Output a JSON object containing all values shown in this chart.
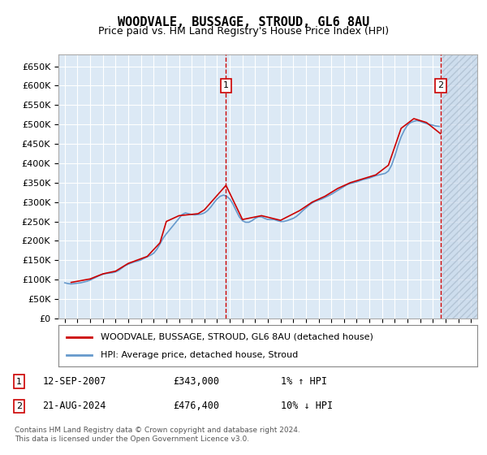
{
  "title": "WOODVALE, BUSSAGE, STROUD, GL6 8AU",
  "subtitle": "Price paid vs. HM Land Registry's House Price Index (HPI)",
  "ylabel_ticks": [
    "£0",
    "£50K",
    "£100K",
    "£150K",
    "£200K",
    "£250K",
    "£300K",
    "£350K",
    "£400K",
    "£450K",
    "£500K",
    "£550K",
    "£600K",
    "£650K"
  ],
  "yticks": [
    0,
    50000,
    100000,
    150000,
    200000,
    250000,
    300000,
    350000,
    400000,
    450000,
    500000,
    550000,
    600000,
    650000
  ],
  "xlim_start": 1994.5,
  "xlim_end": 2027.5,
  "ylim_min": 0,
  "ylim_max": 680000,
  "background_color": "#dce9f5",
  "hatch_color": "#b8cfe8",
  "plot_bg": "#dce9f5",
  "grid_color": "#ffffff",
  "red_line_color": "#cc0000",
  "blue_line_color": "#6699cc",
  "marker1_date": 2007.7,
  "marker2_date": 2024.6,
  "marker1_price": 343000,
  "marker2_price": 476400,
  "annotation1": "1    12-SEP-2007         £343,000         1% ↑ HPI",
  "annotation2": "2    21-AUG-2024         £476,400         10% ↓ HPI",
  "legend_line1": "WOODVALE, BUSSAGE, STROUD, GL6 8AU (detached house)",
  "legend_line2": "HPI: Average price, detached house, Stroud",
  "footer": "Contains HM Land Registry data © Crown copyright and database right 2024.\nThis data is licensed under the Open Government Licence v3.0.",
  "hpi_data": {
    "years": [
      1995.0,
      1995.25,
      1995.5,
      1995.75,
      1996.0,
      1996.25,
      1996.5,
      1996.75,
      1997.0,
      1997.25,
      1997.5,
      1997.75,
      1998.0,
      1998.25,
      1998.5,
      1998.75,
      1999.0,
      1999.25,
      1999.5,
      1999.75,
      2000.0,
      2000.25,
      2000.5,
      2000.75,
      2001.0,
      2001.25,
      2001.5,
      2001.75,
      2002.0,
      2002.25,
      2002.5,
      2002.75,
      2003.0,
      2003.25,
      2003.5,
      2003.75,
      2004.0,
      2004.25,
      2004.5,
      2004.75,
      2005.0,
      2005.25,
      2005.5,
      2005.75,
      2006.0,
      2006.25,
      2006.5,
      2006.75,
      2007.0,
      2007.25,
      2007.5,
      2007.75,
      2008.0,
      2008.25,
      2008.5,
      2008.75,
      2009.0,
      2009.25,
      2009.5,
      2009.75,
      2010.0,
      2010.25,
      2010.5,
      2010.75,
      2011.0,
      2011.25,
      2011.5,
      2011.75,
      2012.0,
      2012.25,
      2012.5,
      2012.75,
      2013.0,
      2013.25,
      2013.5,
      2013.75,
      2014.0,
      2014.25,
      2014.5,
      2014.75,
      2015.0,
      2015.25,
      2015.5,
      2015.75,
      2016.0,
      2016.25,
      2016.5,
      2016.75,
      2017.0,
      2017.25,
      2017.5,
      2017.75,
      2018.0,
      2018.25,
      2018.5,
      2018.75,
      2019.0,
      2019.25,
      2019.5,
      2019.75,
      2020.0,
      2020.25,
      2020.5,
      2020.75,
      2021.0,
      2021.25,
      2021.5,
      2021.75,
      2022.0,
      2022.25,
      2022.5,
      2022.75,
      2023.0,
      2023.25,
      2023.5,
      2023.75,
      2024.0,
      2024.25,
      2024.5
    ],
    "values": [
      92000,
      90000,
      89000,
      90000,
      91000,
      92000,
      94000,
      96000,
      99000,
      103000,
      107000,
      111000,
      114000,
      116000,
      117000,
      118000,
      120000,
      124000,
      130000,
      136000,
      140000,
      143000,
      146000,
      148000,
      151000,
      155000,
      159000,
      163000,
      168000,
      178000,
      192000,
      207000,
      218000,
      228000,
      238000,
      248000,
      258000,
      268000,
      272000,
      270000,
      268000,
      267000,
      268000,
      269000,
      272000,
      278000,
      287000,
      298000,
      308000,
      315000,
      318000,
      315000,
      308000,
      295000,
      278000,
      262000,
      252000,
      248000,
      248000,
      252000,
      258000,
      262000,
      262000,
      258000,
      255000,
      255000,
      255000,
      252000,
      250000,
      250000,
      252000,
      255000,
      258000,
      263000,
      270000,
      278000,
      285000,
      292000,
      298000,
      302000,
      305000,
      308000,
      312000,
      316000,
      320000,
      325000,
      330000,
      335000,
      340000,
      345000,
      348000,
      350000,
      352000,
      355000,
      358000,
      360000,
      362000,
      365000,
      368000,
      370000,
      372000,
      374000,
      380000,
      395000,
      418000,
      445000,
      468000,
      485000,
      498000,
      505000,
      508000,
      510000,
      508000,
      505000,
      502000,
      500000,
      498000,
      496000,
      495000
    ]
  },
  "price_paid_data": {
    "years": [
      1995.5,
      1997.0,
      1998.0,
      1999.0,
      2000.0,
      2001.5,
      2002.5,
      2003.0,
      2004.0,
      2005.5,
      2006.0,
      2007.7,
      2009.0,
      2010.5,
      2012.0,
      2013.5,
      2014.5,
      2015.5,
      2016.5,
      2017.5,
      2018.5,
      2019.5,
      2020.5,
      2021.5,
      2022.5,
      2023.5,
      2024.6
    ],
    "values": [
      93000,
      102000,
      115000,
      122000,
      142000,
      160000,
      195000,
      250000,
      265000,
      270000,
      280000,
      343000,
      255000,
      265000,
      253000,
      278000,
      300000,
      315000,
      335000,
      350000,
      360000,
      370000,
      395000,
      490000,
      515000,
      505000,
      476400
    ]
  }
}
